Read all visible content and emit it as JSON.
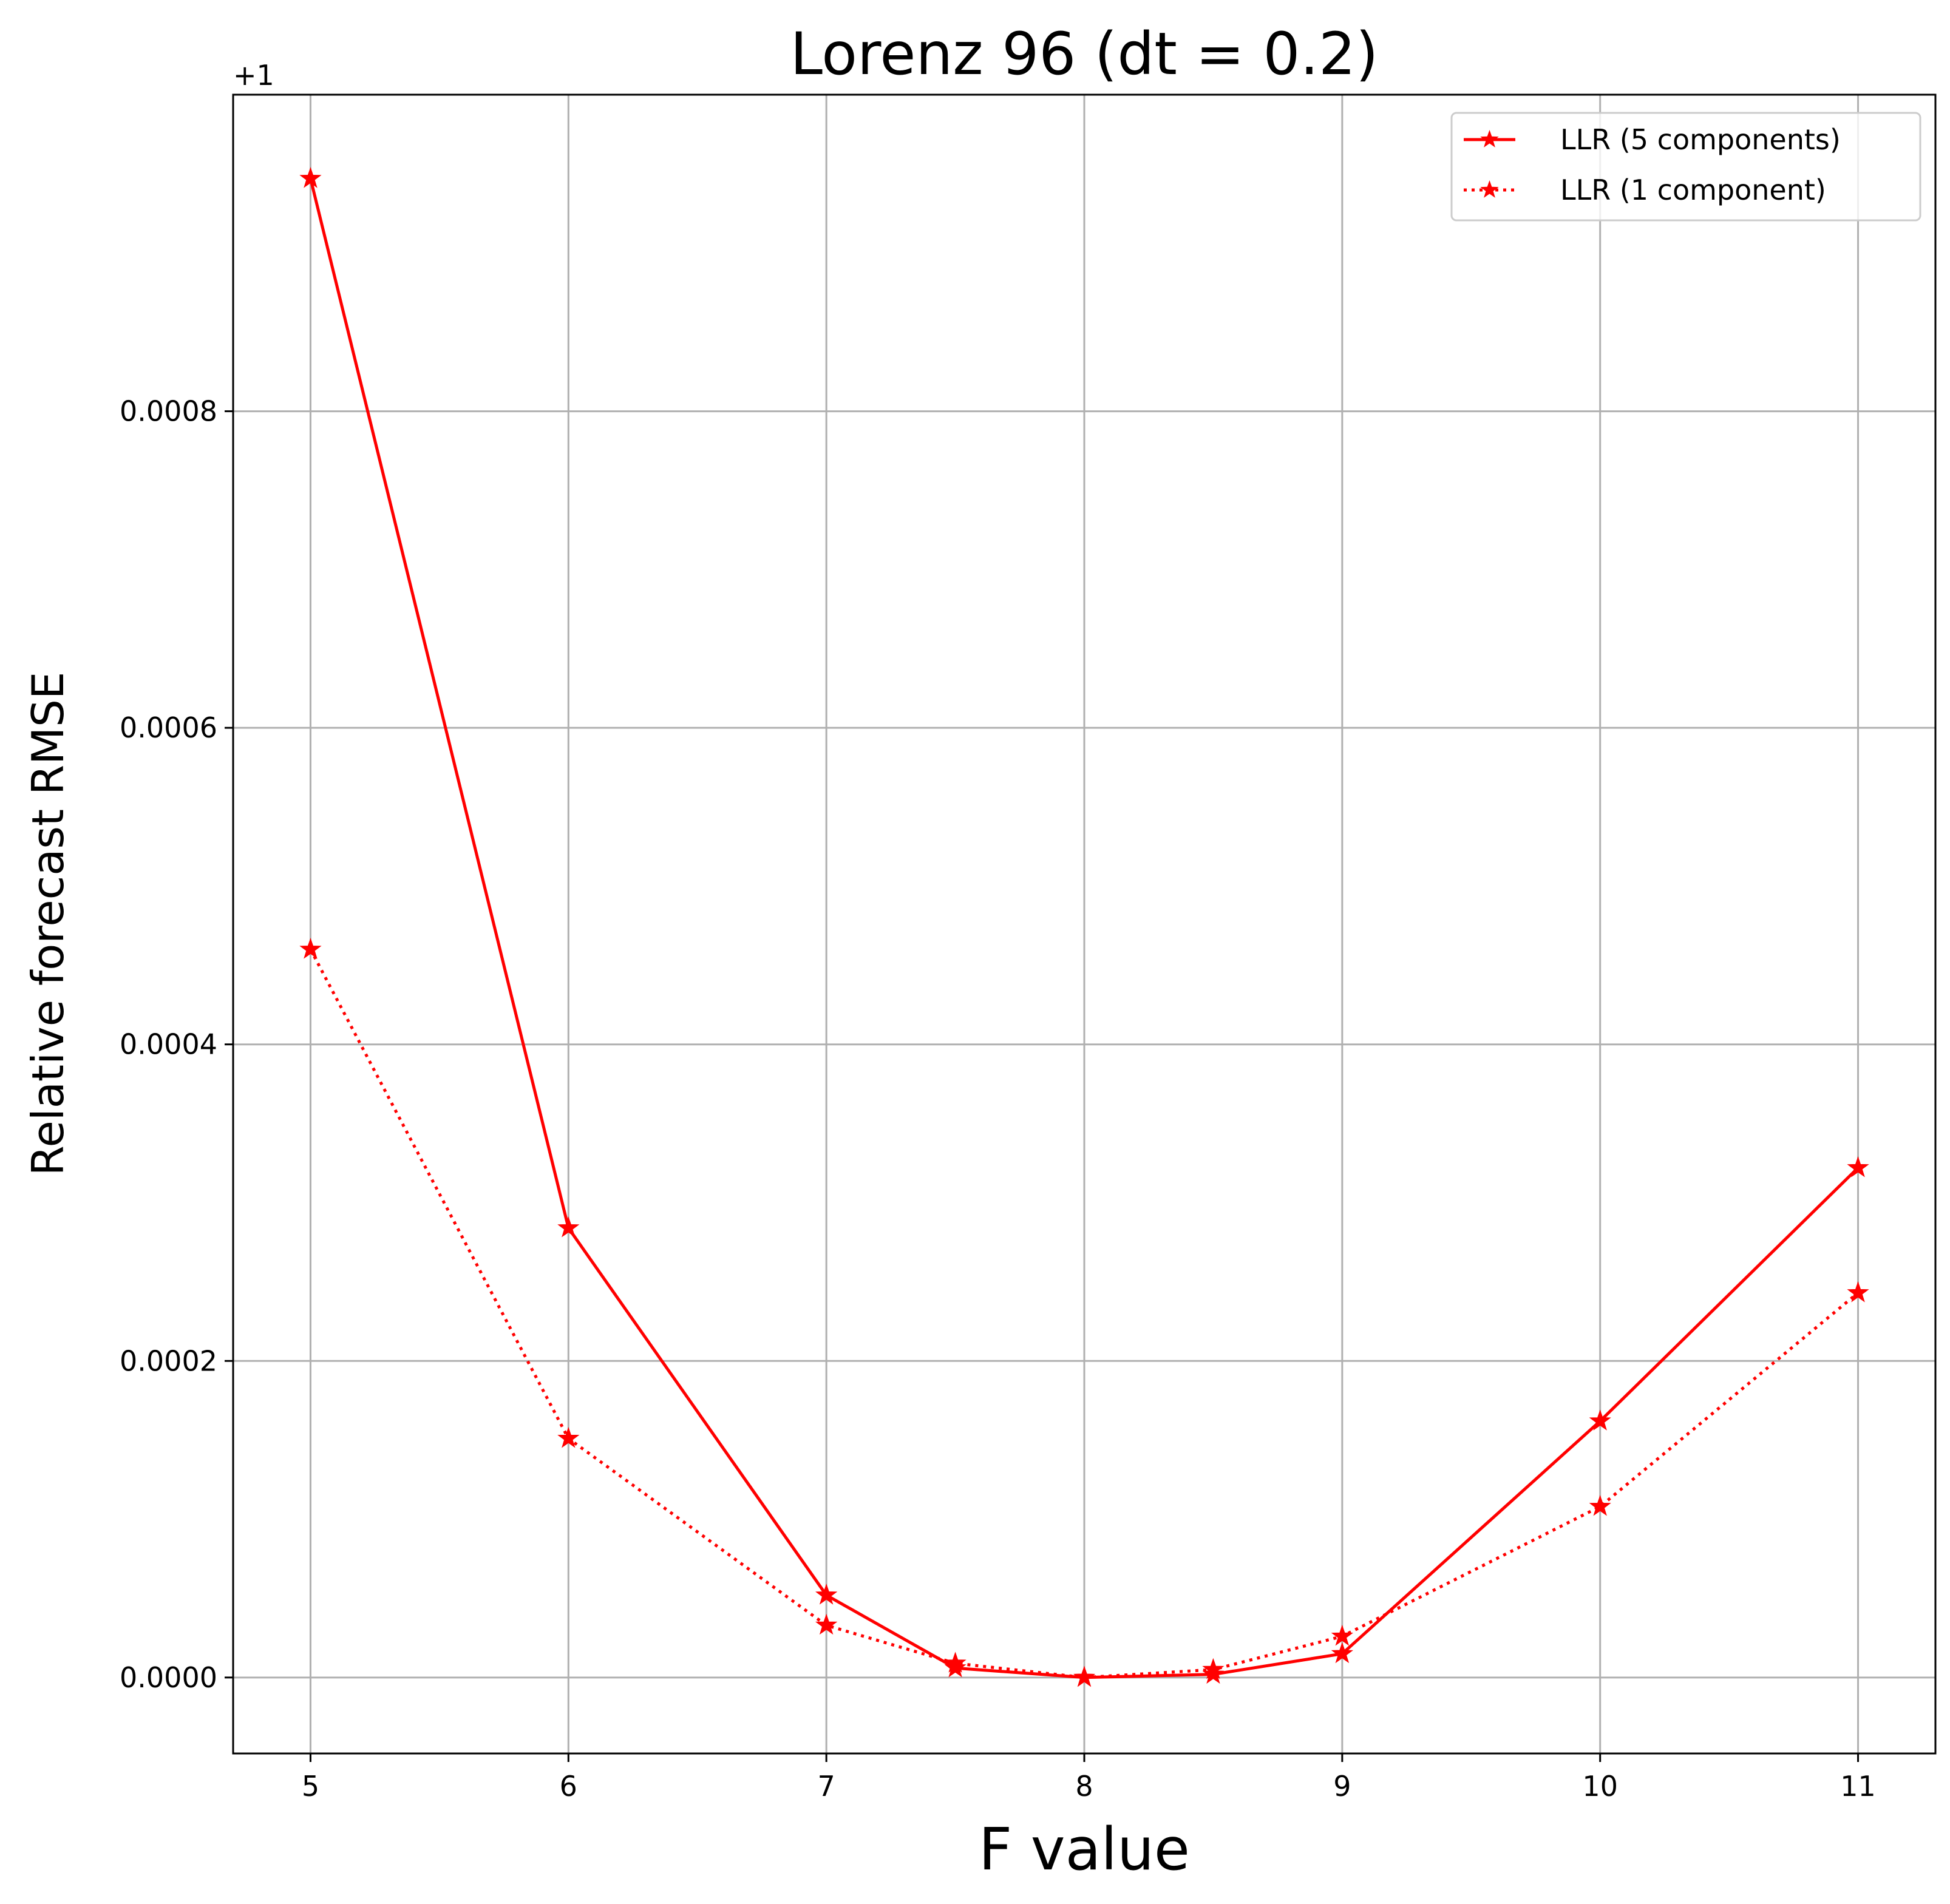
{
  "chart_data": {
    "type": "line",
    "title": "Lorenz 96 (dt = 0.2)",
    "xlabel": "F value",
    "ylabel": "Relative forecast RMSE",
    "y_offset_label": "+1",
    "x": [
      5,
      6,
      7,
      7.5,
      8,
      8.5,
      9,
      10,
      11
    ],
    "x_ticks": [
      5,
      6,
      7,
      8,
      9,
      10,
      11
    ],
    "x_tick_labels": [
      "5",
      "6",
      "7",
      "8",
      "9",
      "10",
      "11"
    ],
    "y_ticks": [
      0,
      0.0002,
      0.0004,
      0.0006,
      0.0008
    ],
    "y_tick_labels": [
      "0.0000",
      "0.0002",
      "0.0004",
      "0.0006",
      "0.0008"
    ],
    "xlim": [
      4.7,
      11.3
    ],
    "ylim": [
      -4.8e-05,
      0.001
    ],
    "grid": true,
    "legend_position": "top-right",
    "series": [
      {
        "name": "LLR (5 components)",
        "color": "#ff0000",
        "line_style": "solid",
        "marker": "star",
        "values": [
          0.000947,
          0.000284,
          5.2e-05,
          6e-06,
          0.0,
          2e-06,
          1.5e-05,
          0.000162,
          0.000322
        ]
      },
      {
        "name": "LLR (1 component)",
        "color": "#ff0000",
        "line_style": "dotted",
        "marker": "star",
        "values": [
          0.00046,
          0.000151,
          3.3e-05,
          9e-06,
          0.0,
          5e-06,
          2.6e-05,
          0.000108,
          0.000243
        ]
      }
    ]
  }
}
